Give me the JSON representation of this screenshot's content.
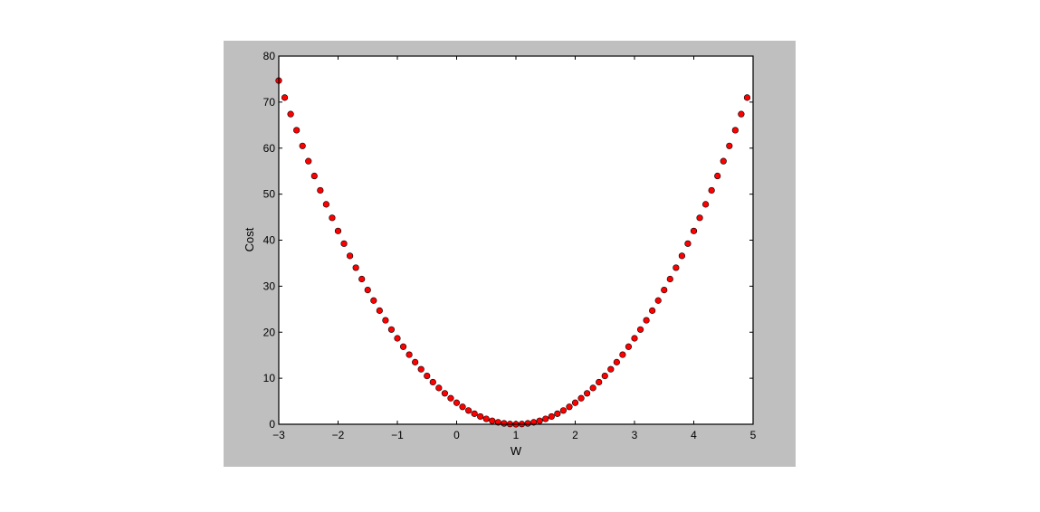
{
  "chart_data": {
    "type": "scatter",
    "title": "",
    "xlabel": "W",
    "ylabel": "Cost",
    "xlim": [
      -3,
      5
    ],
    "ylim": [
      0,
      80
    ],
    "grid": false,
    "xticks": [
      -3,
      -2,
      -1,
      0,
      1,
      2,
      3,
      4,
      5
    ],
    "xtick_labels": [
      "−3",
      "−2",
      "−1",
      "0",
      "1",
      "2",
      "3",
      "4",
      "5"
    ],
    "yticks": [
      0,
      10,
      20,
      30,
      40,
      50,
      60,
      70,
      80
    ],
    "ytick_labels": [
      "0",
      "10",
      "20",
      "30",
      "40",
      "50",
      "60",
      "70",
      "80"
    ],
    "colors": {
      "marker": "#ff0000",
      "marker_edge": "#000000",
      "figure_background": "#bfbfbf",
      "axes_background": "#ffffff"
    },
    "x": [
      -3.0,
      -2.9,
      -2.8,
      -2.7,
      -2.6,
      -2.5,
      -2.4,
      -2.3,
      -2.2,
      -2.1,
      -2.0,
      -1.9,
      -1.8,
      -1.7,
      -1.6,
      -1.5,
      -1.4,
      -1.3,
      -1.2,
      -1.1,
      -1.0,
      -0.9,
      -0.8,
      -0.7,
      -0.6,
      -0.5,
      -0.4,
      -0.3,
      -0.2,
      -0.1,
      0.0,
      0.1,
      0.2,
      0.3,
      0.4,
      0.5,
      0.6,
      0.7,
      0.8,
      0.9,
      1.0,
      1.1,
      1.2,
      1.3,
      1.4,
      1.5,
      1.6,
      1.7,
      1.8,
      1.9,
      2.0,
      2.1,
      2.2,
      2.3,
      2.4,
      2.5,
      2.6,
      2.7,
      2.8,
      2.9,
      3.0,
      3.1,
      3.2,
      3.3,
      3.4,
      3.5,
      3.6,
      3.7,
      3.8,
      3.9,
      4.0,
      4.1,
      4.2,
      4.3,
      4.4,
      4.5,
      4.6,
      4.7,
      4.8,
      4.9
    ],
    "y": [
      74.67,
      70.98,
      67.39,
      63.89,
      60.48,
      57.17,
      53.95,
      50.82,
      47.79,
      44.85,
      42.0,
      39.25,
      36.59,
      34.02,
      31.55,
      29.17,
      26.88,
      24.69,
      22.59,
      20.58,
      18.67,
      16.85,
      15.12,
      13.49,
      11.95,
      10.5,
      9.15,
      7.89,
      6.72,
      5.65,
      4.67,
      3.78,
      2.99,
      2.29,
      1.68,
      1.17,
      0.75,
      0.42,
      0.19,
      0.05,
      0.0,
      0.05,
      0.19,
      0.42,
      0.75,
      1.17,
      1.68,
      2.29,
      2.99,
      3.78,
      4.67,
      5.65,
      6.72,
      7.89,
      9.15,
      10.5,
      11.95,
      13.49,
      15.12,
      16.85,
      18.67,
      20.58,
      22.59,
      24.69,
      26.88,
      29.17,
      31.55,
      34.02,
      36.59,
      39.25,
      42.0,
      44.85,
      47.79,
      50.82,
      53.95,
      57.17,
      60.48,
      63.89,
      67.39,
      70.98
    ]
  }
}
